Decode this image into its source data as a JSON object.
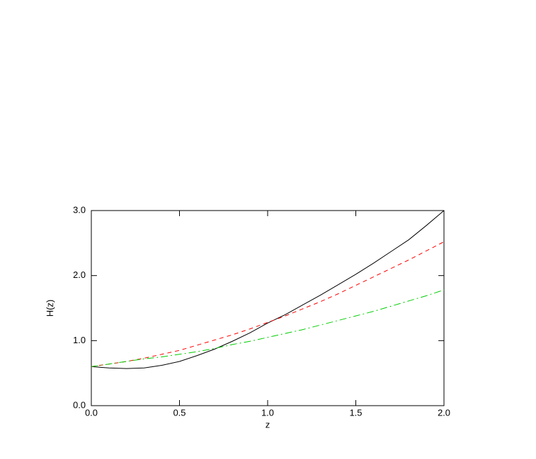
{
  "chart_data": {
    "type": "line",
    "x_label": "z",
    "y_label": "H(z)",
    "x": [
      0.0,
      0.1,
      0.2,
      0.3,
      0.4,
      0.5,
      0.6,
      0.7,
      0.8,
      0.9,
      1.0,
      1.1,
      1.2,
      1.3,
      1.4,
      1.5,
      1.6,
      1.7,
      1.8,
      1.9,
      2.0
    ],
    "series": [
      {
        "color": "#000000",
        "dash": "none",
        "values": [
          0.6,
          0.58,
          0.57,
          0.58,
          0.62,
          0.68,
          0.77,
          0.87,
          0.99,
          1.12,
          1.27,
          1.4,
          1.55,
          1.7,
          1.86,
          2.02,
          2.19,
          2.37,
          2.55,
          2.77,
          3.0
        ]
      },
      {
        "color": "#ff0000",
        "dash": "6 5",
        "values": [
          0.6,
          0.64,
          0.68,
          0.73,
          0.79,
          0.85,
          0.93,
          1.01,
          1.09,
          1.18,
          1.28,
          1.38,
          1.49,
          1.6,
          1.72,
          1.85,
          1.98,
          2.11,
          2.24,
          2.38,
          2.52
        ]
      },
      {
        "color": "#00cc00",
        "dash": "10 4 2 4",
        "values": [
          0.6,
          0.64,
          0.68,
          0.72,
          0.75,
          0.79,
          0.83,
          0.88,
          0.94,
          0.99,
          1.05,
          1.11,
          1.17,
          1.24,
          1.31,
          1.38,
          1.45,
          1.53,
          1.61,
          1.69,
          1.78
        ]
      }
    ],
    "xlim": [
      0,
      2
    ],
    "xticks": [
      {
        "value": 0,
        "label": "0.0"
      },
      {
        "value": 0.5,
        "label": "0.5"
      },
      {
        "value": 1,
        "label": "1.0"
      },
      {
        "value": 1.5,
        "label": "1.5"
      },
      {
        "value": 2,
        "label": "2.0"
      }
    ],
    "ylim": [
      0,
      3
    ],
    "yticks": [
      {
        "value": 0,
        "label": "0.0"
      },
      {
        "value": 1,
        "label": "1.0"
      },
      {
        "value": 2,
        "label": "2.0"
      },
      {
        "value": 3,
        "label": "3.0"
      }
    ],
    "grid": false
  }
}
